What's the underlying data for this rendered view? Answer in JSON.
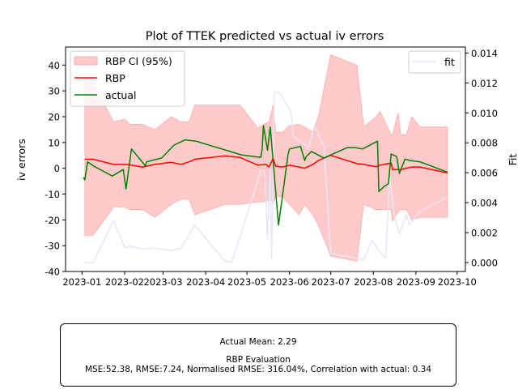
{
  "chart_data": {
    "type": "line",
    "title": "Plot of TTEK predicted vs actual iv errors",
    "ylabel": "iv errors",
    "y2label": "Fit",
    "ylim": [
      -40,
      47
    ],
    "y2lim": [
      -0.0006,
      0.0144
    ],
    "xlim": [
      "2022-12-20",
      "2023-10-07"
    ],
    "x_ticks": [
      "2023-01",
      "2023-02",
      "2023-03",
      "2023-04",
      "2023-05",
      "2023-06",
      "2023-07",
      "2023-08",
      "2023-09",
      "2023-10"
    ],
    "y_ticks": [
      -40,
      -30,
      -20,
      -10,
      0,
      10,
      20,
      30,
      40
    ],
    "y2_ticks": [
      0.0,
      0.002,
      0.004,
      0.006,
      0.008,
      0.01,
      0.012,
      0.014
    ],
    "grid": false,
    "legend_left": "top-left",
    "legend_right": "top-right",
    "colors": {
      "ci": "#ffcaca",
      "ci_edge": "#ffaaaa",
      "rbp": "#ff0000",
      "actual": "#008000",
      "fit": "#e6e6fa"
    },
    "series": [
      {
        "name": "RBP CI (95%)",
        "kind": "band",
        "x": [
          "2023-01-03",
          "2023-01-09",
          "2023-01-24",
          "2023-02-01",
          "2023-02-05",
          "2023-02-14",
          "2023-02-23",
          "2023-03-07",
          "2023-03-14",
          "2023-03-20",
          "2023-03-24",
          "2023-04-15",
          "2023-04-20",
          "2023-04-26",
          "2023-05-09",
          "2023-05-15",
          "2023-05-17",
          "2023-05-19",
          "2023-05-20",
          "2023-05-22",
          "2023-05-27",
          "2023-06-01",
          "2023-06-08",
          "2023-06-12",
          "2023-06-18",
          "2023-06-22",
          "2023-07-01",
          "2023-07-20",
          "2023-07-25",
          "2023-08-03",
          "2023-08-06",
          "2023-08-14",
          "2023-08-15",
          "2023-08-19",
          "2023-08-21",
          "2023-08-25",
          "2023-08-29",
          "2023-09-04",
          "2023-09-24"
        ],
        "upper": [
          33,
          33,
          18,
          19,
          17,
          17,
          15,
          20,
          18,
          18,
          24.5,
          24.5,
          24.5,
          24.5,
          15.5,
          17.5,
          18,
          22,
          24.5,
          14,
          14,
          16.5,
          17,
          16,
          14,
          20,
          44,
          40,
          16,
          20,
          22,
          13,
          13,
          21.5,
          13,
          13,
          20,
          16,
          16
        ],
        "lower": [
          -26,
          -26,
          -15,
          -15,
          -16,
          -16,
          -19,
          -14,
          -12,
          -12,
          -18,
          -14,
          -14,
          -14,
          -13,
          -13,
          -12,
          -12.5,
          -13.5,
          -11,
          -11,
          -14,
          -18,
          -14,
          -18,
          -22,
          -34,
          -36,
          -14,
          -16,
          -16,
          -16,
          -20.5,
          -17,
          -16,
          -16,
          -20,
          -19,
          -19
        ]
      },
      {
        "name": "RBP",
        "kind": "line",
        "x": [
          "2023-01-03",
          "2023-01-09",
          "2023-01-24",
          "2023-02-01",
          "2023-02-05",
          "2023-02-14",
          "2023-02-23",
          "2023-03-07",
          "2023-03-14",
          "2023-03-20",
          "2023-03-24",
          "2023-04-15",
          "2023-04-20",
          "2023-04-26",
          "2023-05-09",
          "2023-05-15",
          "2023-05-17",
          "2023-05-19",
          "2023-05-20",
          "2023-05-22",
          "2023-05-27",
          "2023-06-01",
          "2023-06-08",
          "2023-06-12",
          "2023-06-18",
          "2023-06-22",
          "2023-07-01",
          "2023-07-20",
          "2023-07-25",
          "2023-08-03",
          "2023-08-06",
          "2023-08-14",
          "2023-08-15",
          "2023-08-19",
          "2023-08-21",
          "2023-08-25",
          "2023-08-29",
          "2023-09-04",
          "2023-09-24"
        ],
        "values": [
          3.5,
          3.5,
          1.5,
          1.5,
          1.3,
          0.5,
          1.5,
          2.3,
          1.5,
          2.5,
          3.5,
          4.8,
          4.5,
          4.2,
          1.2,
          1.5,
          0.5,
          2.5,
          3.8,
          0.8,
          0.5,
          1.2,
          0.5,
          0,
          1.5,
          3,
          5,
          1.8,
          1.5,
          0.6,
          1.2,
          2,
          -0.5,
          -0.5,
          -0.5,
          0,
          0.5,
          0.5,
          -1.8
        ]
      },
      {
        "name": "actual",
        "kind": "line",
        "x": [
          "2023-01-02",
          "2023-01-03",
          "2023-01-05",
          "2023-01-09",
          "2023-01-23",
          "2023-01-31",
          "2023-02-02",
          "2023-02-06",
          "2023-02-16",
          "2023-02-17",
          "2023-02-28",
          "2023-03-09",
          "2023-03-17",
          "2023-03-25",
          "2023-04-27",
          "2023-05-11",
          "2023-05-12",
          "2023-05-13",
          "2023-05-16",
          "2023-05-18",
          "2023-05-24",
          "2023-05-31",
          "2023-06-01",
          "2023-06-09",
          "2023-06-12",
          "2023-06-13",
          "2023-06-17",
          "2023-06-26",
          "2023-07-13",
          "2023-07-19",
          "2023-07-24",
          "2023-07-26",
          "2023-08-04",
          "2023-08-05",
          "2023-08-09",
          "2023-08-12",
          "2023-08-14",
          "2023-08-18",
          "2023-08-20",
          "2023-08-24",
          "2023-08-28",
          "2023-09-04",
          "2023-09-24"
        ],
        "values": [
          -3.5,
          -4.5,
          2.5,
          1,
          -3,
          -0.5,
          -8,
          7.5,
          1,
          2.5,
          4,
          9,
          11,
          10.5,
          5.2,
          4.2,
          7,
          16.5,
          7,
          16,
          -22,
          5.5,
          7.5,
          8.5,
          3,
          4.5,
          6.5,
          4,
          8,
          8,
          7.5,
          8,
          10.5,
          -9,
          -7,
          -6,
          5.5,
          4.5,
          -2,
          3.5,
          3,
          2.5,
          -1.5
        ]
      },
      {
        "name": "fit",
        "kind": "line",
        "axis": "right",
        "x": [
          "2023-01-03",
          "2023-01-09",
          "2023-01-24",
          "2023-02-01",
          "2023-02-05",
          "2023-02-14",
          "2023-02-23",
          "2023-03-07",
          "2023-03-14",
          "2023-03-24",
          "2023-04-15",
          "2023-04-20",
          "2023-05-11",
          "2023-05-14",
          "2023-05-16",
          "2023-05-18",
          "2023-05-19",
          "2023-05-21",
          "2023-05-25",
          "2023-06-02",
          "2023-06-04",
          "2023-06-08",
          "2023-06-15",
          "2023-06-19",
          "2023-06-26",
          "2023-07-01",
          "2023-07-25",
          "2023-07-31",
          "2023-08-05",
          "2023-08-10",
          "2023-08-13",
          "2023-08-16",
          "2023-08-20",
          "2023-08-25",
          "2023-08-27",
          "2023-09-04",
          "2023-09-24"
        ],
        "values": [
          0,
          0,
          0.0028,
          0.001,
          0.0011,
          0.0009,
          0.00095,
          0.0008,
          0.00095,
          0.0025,
          0.0001,
          0,
          0.0061,
          0.0061,
          0.0016,
          0.0062,
          0.0003,
          0.0114,
          0.0113,
          0.0101,
          0.0084,
          0.0081,
          0.0077,
          0.0091,
          0.0078,
          0.0006,
          0.0002,
          0.0015,
          0.0008,
          0.0003,
          0.0057,
          0.0033,
          0.0019,
          0.0032,
          0.0025,
          0.0034,
          0.0044
        ]
      }
    ]
  },
  "stats": {
    "actual_mean": "Actual Mean: 2.29",
    "eval_title": "RBP Evaluation",
    "eval_metrics": "MSE:52.38, RMSE:7.24, Normalised RMSE: 316.04%, Correlation with actual: 0.34"
  }
}
